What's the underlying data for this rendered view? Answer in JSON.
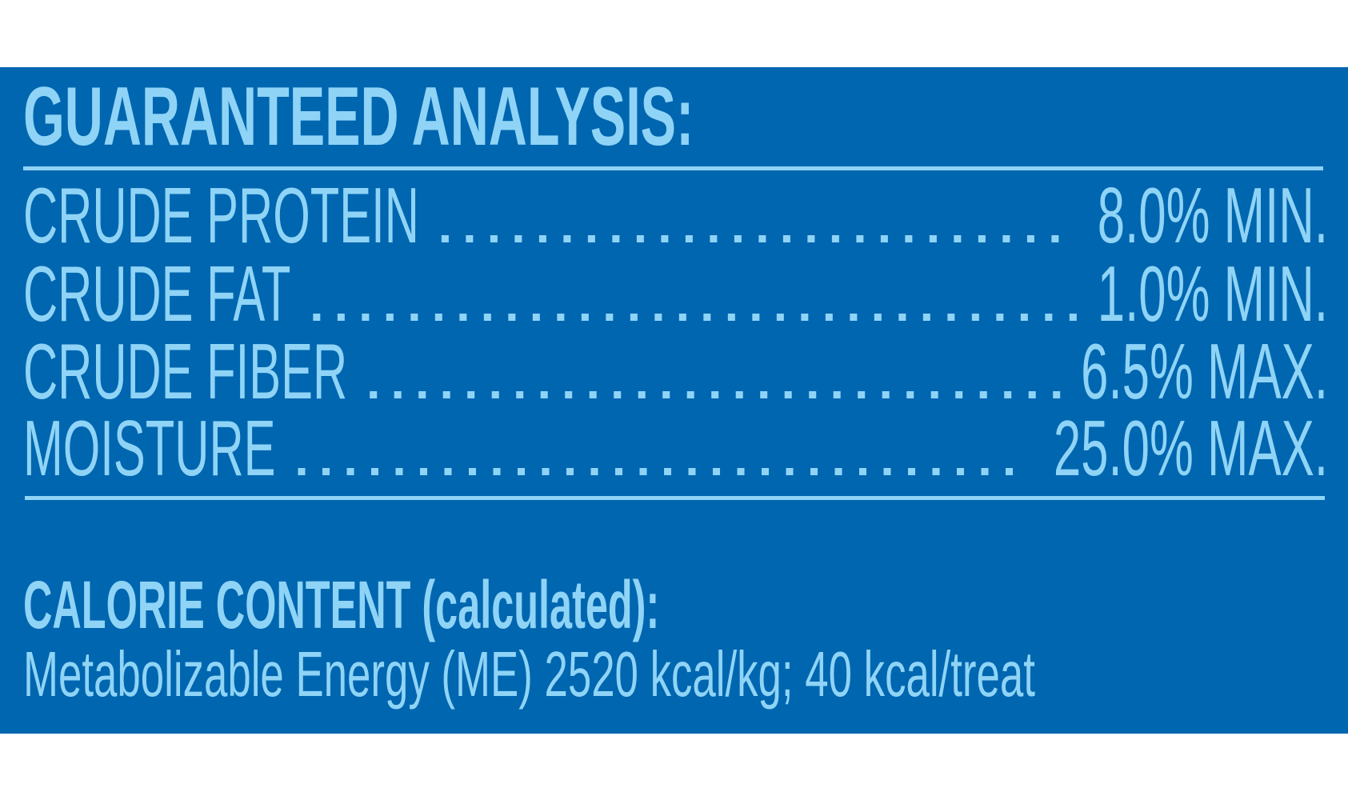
{
  "header": {
    "title": "GUARANTEED ANALYSIS:"
  },
  "rows": [
    {
      "label": "CRUDE PROTEIN",
      "value": "8.0% MIN."
    },
    {
      "label": "CRUDE FAT",
      "value": "1.0% MIN."
    },
    {
      "label": "CRUDE FIBER",
      "value": "6.5% MAX."
    },
    {
      "label": "MOISTURE",
      "value": "25.0% MAX."
    }
  ],
  "calorie": {
    "heading": "CALORIE CONTENT (calculated):",
    "text": "Metabolizable Energy (ME) 2520 kcal/kg; 40 kcal/treat"
  }
}
